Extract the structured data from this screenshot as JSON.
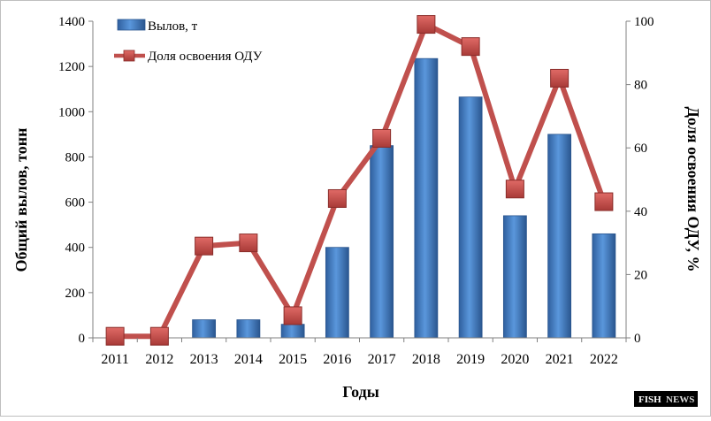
{
  "chart_data": {
    "type": "bar",
    "categories": [
      "2011",
      "2012",
      "2013",
      "2014",
      "2015",
      "2016",
      "2017",
      "2018",
      "2019",
      "2020",
      "2021",
      "2022"
    ],
    "series": [
      {
        "name": "Вылов, т",
        "type": "bar",
        "axis": "left",
        "color": "#3f7cc4",
        "values": [
          0,
          0,
          80,
          80,
          60,
          400,
          850,
          1235,
          1065,
          540,
          900,
          460
        ]
      },
      {
        "name": "Доля освоения ОДУ",
        "type": "line",
        "axis": "right",
        "color": "#c0504d",
        "values": [
          0.5,
          0.5,
          29,
          30,
          7,
          44,
          63,
          99,
          92,
          47,
          82,
          43
        ]
      }
    ],
    "xlabel": "Годы",
    "ylabel": "Общий вылов, тонн",
    "y2label": "Доля освоения ОДУ, %",
    "ylim": [
      0,
      1400
    ],
    "y2lim": [
      0,
      100
    ],
    "yticks": [
      "0",
      "200",
      "400",
      "600",
      "800",
      "1000",
      "1200",
      "1400"
    ],
    "y2ticks": [
      "0",
      "20",
      "40",
      "60",
      "80",
      "100"
    ],
    "legend_position": "top-left",
    "grid": false
  },
  "watermark": {
    "brand_left": "FISH",
    "brand_right": "NEWS"
  }
}
